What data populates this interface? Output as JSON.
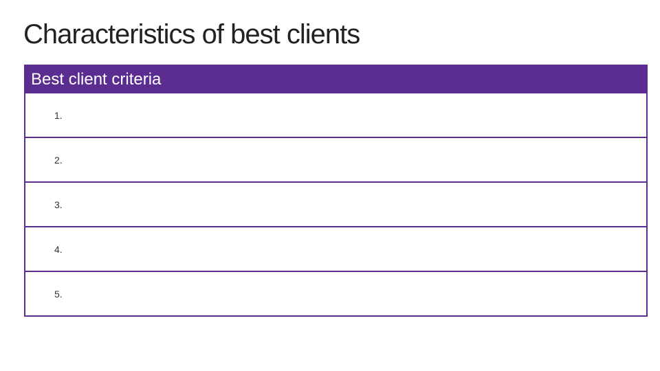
{
  "title": "Characteristics of best clients",
  "table": {
    "header": "Best client criteria",
    "rows": [
      "1.",
      "2.",
      "3.",
      "4.",
      "5."
    ]
  }
}
